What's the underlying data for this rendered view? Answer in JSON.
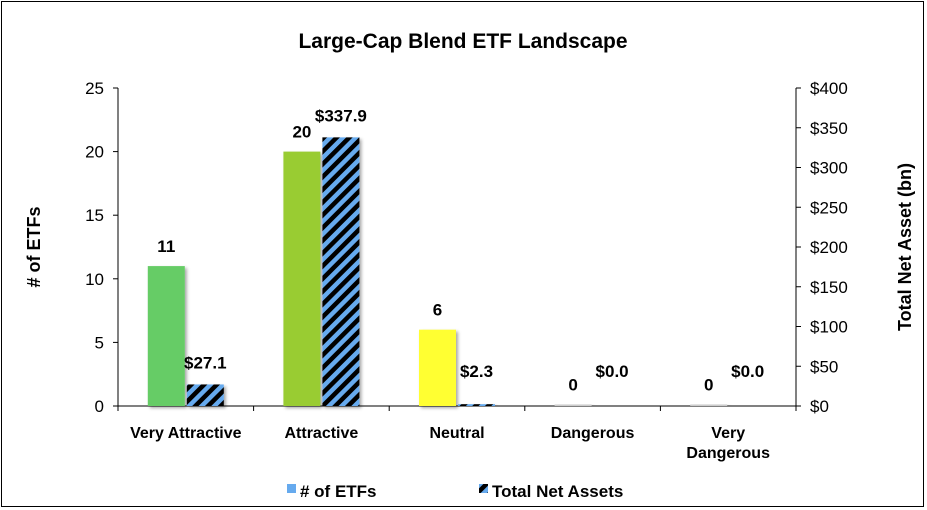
{
  "chart_data": {
    "type": "bar",
    "title": "Large-Cap Blend ETF Landscape",
    "categories": [
      "Very Attractive",
      "Attractive",
      "Neutral",
      "Dangerous",
      "Very Dangerous"
    ],
    "category_lines": [
      [
        "Very Attractive"
      ],
      [
        "Attractive"
      ],
      [
        "Neutral"
      ],
      [
        "Dangerous"
      ],
      [
        "Very",
        "Dangerous"
      ]
    ],
    "ylabel": "# of ETFs",
    "y2label": "Total Net Asset (bn)",
    "ylim": [
      0,
      25
    ],
    "y2lim": [
      0,
      400
    ],
    "yticks": [
      "0",
      "5",
      "10",
      "15",
      "20",
      "25"
    ],
    "y2ticks": [
      "$0",
      "$50",
      "$100",
      "$150",
      "$200",
      "$250",
      "$300",
      "$350",
      "$400"
    ],
    "series": [
      {
        "name": "# of ETFs",
        "axis": "left",
        "values": [
          11,
          20,
          6,
          0,
          0
        ],
        "labels": [
          "11",
          "20",
          "6",
          "0",
          "0"
        ],
        "colors": [
          "#66cc66",
          "#99cc33",
          "#ffff33",
          "#cccccc",
          "#cccccc"
        ]
      },
      {
        "name": "Total Net Assets",
        "axis": "right",
        "values": [
          27.1,
          337.9,
          2.3,
          0.0,
          0.0
        ],
        "labels": [
          "$27.1",
          "$337.9",
          "$2.3",
          "$0.0",
          "$0.0"
        ],
        "color": "#66aaee",
        "pattern": "diagonal-stripes"
      }
    ],
    "legend_position": "bottom",
    "grid": false
  }
}
